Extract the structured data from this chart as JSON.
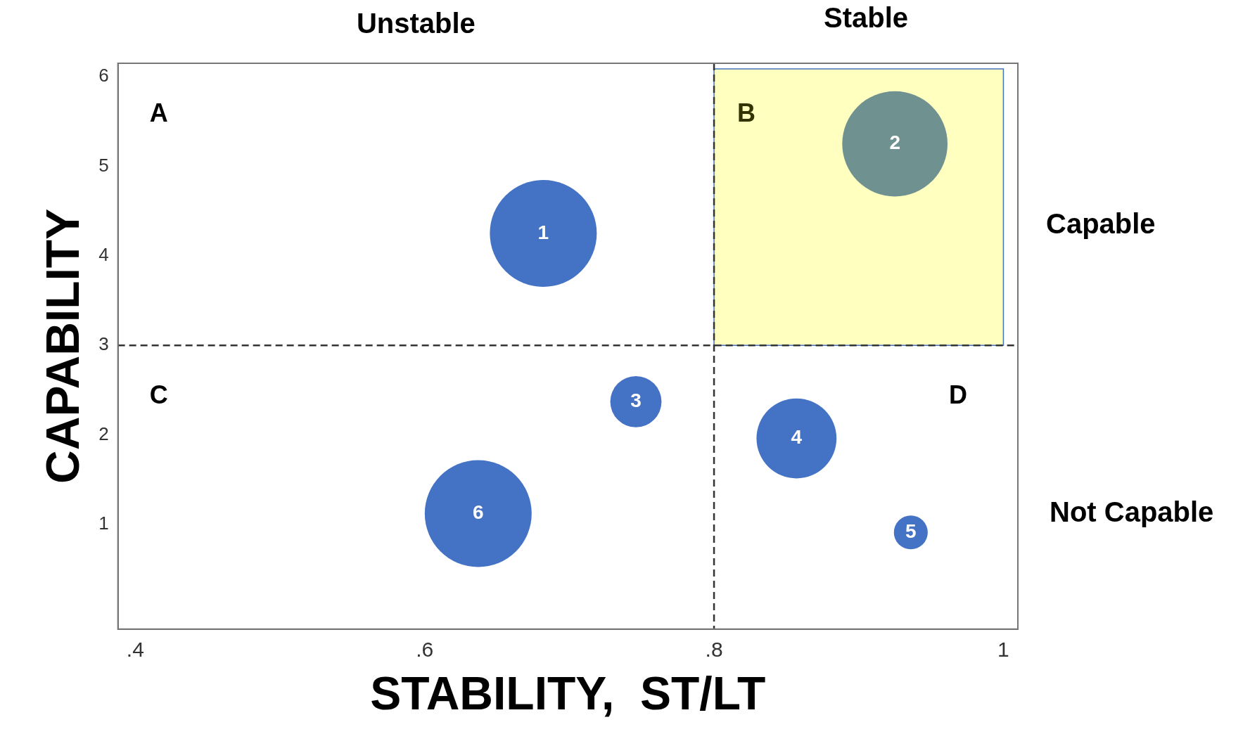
{
  "chart_data": {
    "type": "bubble",
    "xlabel": "STABILITY,  ST/LT",
    "ylabel": "CAPABILITY",
    "xlim": [
      0.388,
      1.01
    ],
    "xticks": [
      {
        "value": 0.4,
        "label": ".4"
      },
      {
        "value": 0.6,
        "label": ".6"
      },
      {
        "value": 0.8,
        "label": ".8"
      },
      1
    ],
    "ylim": [
      -0.17,
      6.15
    ],
    "yticks": [
      1,
      2,
      3,
      4,
      5,
      6
    ],
    "series": [
      {
        "colors": [
          "#4472c4",
          "#6f9190",
          "#4472c4",
          "#4472c4",
          "#4472c4",
          "#4472c4"
        ],
        "x": [
          0.682,
          0.925,
          0.746,
          0.857,
          0.936,
          0.637
        ],
        "values": [
          4.25,
          5.25,
          2.37,
          1.96,
          0.91,
          1.12
        ],
        "sizes": [
          1,
          0.97,
          0.23,
          0.56,
          0.1,
          1
        ]
      }
    ],
    "ref_lines": [
      {
        "axis": "x",
        "value": 0.8,
        "line_style": "dashed",
        "color": "#333333"
      },
      {
        "axis": "y",
        "value": 3,
        "line_style": "dashed",
        "color": "#333333"
      }
    ],
    "bands": [
      {
        "axis": "x",
        "from": 0.8,
        "to": 1.0,
        "color": "#ffffc0"
      }
    ],
    "annotations": [
      "Unstable",
      "Stable",
      "Capable",
      "Not Capable",
      "A",
      "B",
      "C",
      "D",
      {
        "text": "1",
        "x": 0.682,
        "y": 4.25
      },
      {
        "text": "2",
        "x": 0.925,
        "y": 5.25
      },
      {
        "text": "3",
        "x": 0.746,
        "y": 2.37
      },
      {
        "text": "4",
        "x": 0.857,
        "y": 1.96
      },
      {
        "text": "5",
        "x": 0.936,
        "y": 0.91
      },
      {
        "text": "6",
        "x": 0.637,
        "y": 1.12
      }
    ],
    "grid": false,
    "legend": false,
    "marker": "circle"
  }
}
